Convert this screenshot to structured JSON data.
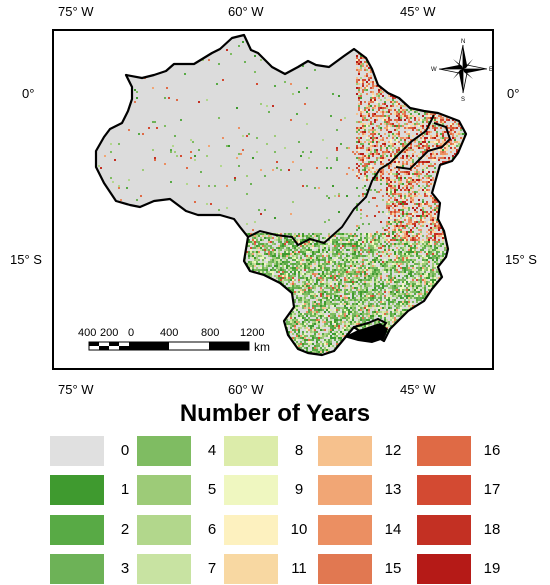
{
  "top_longitudes": [
    "75° W",
    "60° W",
    "45° W"
  ],
  "bottom_longitudes": [
    "75° W",
    "60° W",
    "45° W"
  ],
  "left_latitudes": [
    "0°",
    "15° S"
  ],
  "right_latitudes": [
    "0°",
    "15° S"
  ],
  "north_arrow": {
    "n": "N",
    "s": "S",
    "e": "E",
    "w": "W"
  },
  "scale_bar": {
    "labels": [
      "400",
      "200",
      "0",
      "400",
      "800",
      "1200"
    ],
    "unit": "km"
  },
  "legend": {
    "title": "Number of Years",
    "items": [
      {
        "label": "0",
        "color": "#e0e0e0"
      },
      {
        "label": "1",
        "color": "#3f9a2f"
      },
      {
        "label": "2",
        "color": "#58aa45"
      },
      {
        "label": "3",
        "color": "#6db257"
      },
      {
        "label": "4",
        "color": "#7fbc62"
      },
      {
        "label": "5",
        "color": "#9dcb78"
      },
      {
        "label": "6",
        "color": "#b2d78c"
      },
      {
        "label": "7",
        "color": "#c8e3a2"
      },
      {
        "label": "8",
        "color": "#dcecaa"
      },
      {
        "label": "9",
        "color": "#eff7c0"
      },
      {
        "label": "10",
        "color": "#fdf1bf"
      },
      {
        "label": "11",
        "color": "#f8d8a2"
      },
      {
        "label": "12",
        "color": "#f6c18d"
      },
      {
        "label": "13",
        "color": "#f1a675"
      },
      {
        "label": "14",
        "color": "#eb8f62"
      },
      {
        "label": "15",
        "color": "#e17851"
      },
      {
        "label": "16",
        "color": "#df6a45"
      },
      {
        "label": "17",
        "color": "#d34a32"
      },
      {
        "label": "18",
        "color": "#c33023"
      },
      {
        "label": "19",
        "color": "#b51a17"
      }
    ]
  }
}
